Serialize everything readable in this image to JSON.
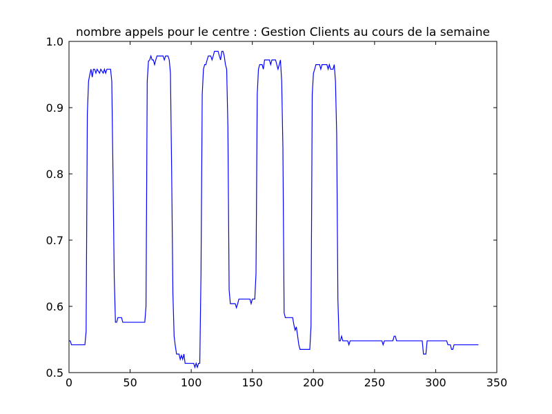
{
  "chart_data": {
    "type": "line",
    "title": "nombre appels pour le centre : Gestion Clients au cours de la semaine",
    "x": [
      0,
      1,
      2,
      13,
      14,
      15,
      16,
      17,
      18,
      19,
      20,
      21,
      22,
      23,
      25,
      26,
      28,
      29,
      30,
      31,
      34,
      35,
      36,
      37,
      38,
      39,
      40,
      43,
      44,
      62,
      63,
      64,
      65,
      66,
      67,
      68,
      69,
      70,
      71,
      72,
      77,
      78,
      79,
      81,
      82,
      83,
      84,
      85,
      86,
      87,
      88,
      90,
      91,
      92,
      93,
      94,
      95,
      102,
      103,
      104,
      105,
      106,
      107,
      108,
      109,
      110,
      111,
      112,
      113,
      114,
      116,
      117,
      118,
      119,
      122,
      123,
      124,
      125,
      126,
      127,
      128,
      129,
      130,
      131,
      132,
      136,
      137,
      138,
      139,
      148,
      149,
      150,
      152,
      153,
      154,
      155,
      156,
      158,
      159,
      160,
      164,
      165,
      166,
      169,
      170,
      171,
      172,
      173,
      174,
      175,
      176,
      177,
      183,
      184,
      185,
      186,
      187,
      188,
      189,
      197,
      198,
      199,
      200,
      201,
      202,
      205,
      206,
      207,
      211,
      212,
      213,
      214,
      216,
      217,
      218,
      219,
      220,
      221,
      222,
      223,
      224,
      228,
      229,
      230,
      256,
      257,
      258,
      265,
      266,
      267,
      268,
      289,
      290,
      292,
      293,
      309,
      310,
      312,
      313,
      314,
      315,
      335
    ],
    "series": [
      {
        "color": "#0000ff",
        "values": [
          0.548,
          0.548,
          0.542,
          0.542,
          0.562,
          0.89,
          0.94,
          0.95,
          0.958,
          0.946,
          0.958,
          0.958,
          0.952,
          0.958,
          0.952,
          0.958,
          0.952,
          0.958,
          0.952,
          0.958,
          0.958,
          0.94,
          0.8,
          0.645,
          0.576,
          0.576,
          0.583,
          0.583,
          0.576,
          0.576,
          0.6,
          0.94,
          0.97,
          0.972,
          0.978,
          0.972,
          0.972,
          0.965,
          0.972,
          0.978,
          0.978,
          0.972,
          0.978,
          0.978,
          0.972,
          0.952,
          0.8,
          0.62,
          0.555,
          0.54,
          0.528,
          0.528,
          0.52,
          0.526,
          0.52,
          0.528,
          0.514,
          0.514,
          0.508,
          0.514,
          0.508,
          0.514,
          0.514,
          0.65,
          0.92,
          0.958,
          0.965,
          0.965,
          0.972,
          0.978,
          0.978,
          0.972,
          0.978,
          0.985,
          0.985,
          0.978,
          0.972,
          0.985,
          0.985,
          0.978,
          0.965,
          0.958,
          0.87,
          0.625,
          0.604,
          0.604,
          0.598,
          0.604,
          0.611,
          0.611,
          0.604,
          0.611,
          0.611,
          0.65,
          0.92,
          0.958,
          0.965,
          0.965,
          0.958,
          0.972,
          0.972,
          0.965,
          0.972,
          0.972,
          0.965,
          0.958,
          0.965,
          0.972,
          0.94,
          0.84,
          0.59,
          0.583,
          0.583,
          0.572,
          0.564,
          0.569,
          0.556,
          0.542,
          0.535,
          0.535,
          0.57,
          0.92,
          0.952,
          0.958,
          0.965,
          0.965,
          0.958,
          0.965,
          0.965,
          0.958,
          0.965,
          0.958,
          0.958,
          0.965,
          0.94,
          0.86,
          0.61,
          0.548,
          0.548,
          0.555,
          0.548,
          0.548,
          0.542,
          0.548,
          0.548,
          0.542,
          0.548,
          0.548,
          0.555,
          0.555,
          0.548,
          0.548,
          0.528,
          0.528,
          0.548,
          0.548,
          0.542,
          0.542,
          0.535,
          0.535,
          0.542,
          0.542
        ]
      }
    ],
    "xlim": [
      0,
      350
    ],
    "xticks": [
      0,
      50,
      100,
      150,
      200,
      250,
      300,
      350
    ],
    "ylim": [
      0.5,
      1.0
    ],
    "yticks": [
      0.5,
      0.6,
      0.7,
      0.8,
      0.9,
      {
        "value": 1.0,
        "label": "1.0"
      }
    ],
    "grid": false
  }
}
